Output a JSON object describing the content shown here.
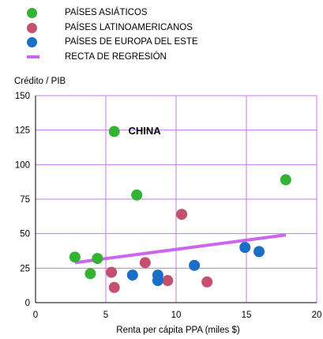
{
  "chart_data": {
    "type": "scatter",
    "xlabel": "Renta per cápita PPA (miles $)",
    "ylabel": "Crédito / PIB",
    "xlim": [
      0,
      20
    ],
    "ylim": [
      0,
      150
    ],
    "xticks": [
      0,
      5,
      10,
      15,
      20
    ],
    "yticks": [
      0,
      25,
      50,
      75,
      100,
      125,
      150
    ],
    "grid": true,
    "legend_position": "top-left",
    "series": [
      {
        "name": "PAÍSES ASIÁTICOS",
        "color": "#33b233",
        "points": [
          [
            2.8,
            33
          ],
          [
            4.4,
            32
          ],
          [
            3.9,
            21
          ],
          [
            5.6,
            124
          ],
          [
            7.2,
            78
          ],
          [
            17.8,
            89
          ]
        ]
      },
      {
        "name": "PAÍSES LATINOAMERICANOS",
        "color": "#c2506e",
        "points": [
          [
            5.4,
            22
          ],
          [
            5.6,
            11
          ],
          [
            7.8,
            29
          ],
          [
            9.4,
            16
          ],
          [
            10.4,
            64
          ],
          [
            12.2,
            15
          ]
        ]
      },
      {
        "name": "PAÍSES DE EUROPA DEL ESTE",
        "color": "#1a6fc4",
        "points": [
          [
            6.9,
            20
          ],
          [
            8.7,
            16
          ],
          [
            8.7,
            20
          ],
          [
            11.3,
            27
          ],
          [
            14.9,
            40
          ],
          [
            15.9,
            37
          ]
        ]
      },
      {
        "name": "RECTA DE REGRESIÓN",
        "type": "line",
        "color": "#cc66ee",
        "points": [
          [
            2.8,
            29
          ],
          [
            17.8,
            49
          ]
        ]
      }
    ],
    "annotations": [
      {
        "text": "CHINA",
        "x": 6.6,
        "y": 122
      }
    ]
  }
}
